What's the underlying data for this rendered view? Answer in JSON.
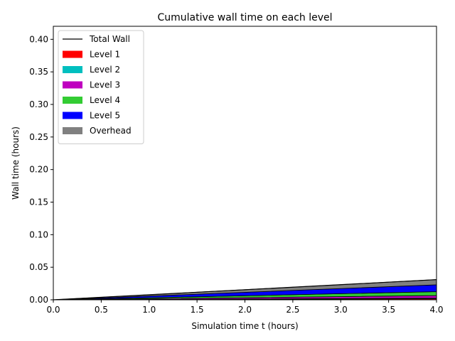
{
  "chart_data": {
    "type": "area",
    "title": "Cumulative wall time on each level",
    "xlabel": "Simulation time t (hours)",
    "ylabel": "Wall time (hours)",
    "xlim": [
      0.0,
      4.0
    ],
    "ylim": [
      0.0,
      0.42
    ],
    "xticks": [
      "0.0",
      "0.5",
      "1.0",
      "1.5",
      "2.0",
      "2.5",
      "3.0",
      "3.5",
      "4.0"
    ],
    "yticks": [
      "0.00",
      "0.05",
      "0.10",
      "0.15",
      "0.20",
      "0.25",
      "0.30",
      "0.35",
      "0.40"
    ],
    "grid": false,
    "legend_position": "upper-left",
    "stacked": true,
    "x": [
      0.0,
      4.0
    ],
    "series": [
      {
        "name": "Level 1",
        "color": "#ff0000",
        "values": [
          0.0,
          0.0015
        ]
      },
      {
        "name": "Level 2",
        "color": "#00bfbf",
        "values": [
          0.0,
          0.001
        ]
      },
      {
        "name": "Level 3",
        "color": "#bf00bf",
        "values": [
          0.0,
          0.004
        ]
      },
      {
        "name": "Level 4",
        "color": "#33cc33",
        "values": [
          0.0,
          0.006
        ]
      },
      {
        "name": "Level 5",
        "color": "#0000ff",
        "values": [
          0.0,
          0.0105
        ]
      },
      {
        "name": "Overhead",
        "color": "#808080",
        "values": [
          0.0,
          0.008
        ]
      }
    ],
    "total_line": {
      "name": "Total Wall",
      "color": "#000000",
      "values": [
        0.0,
        0.031
      ]
    }
  }
}
